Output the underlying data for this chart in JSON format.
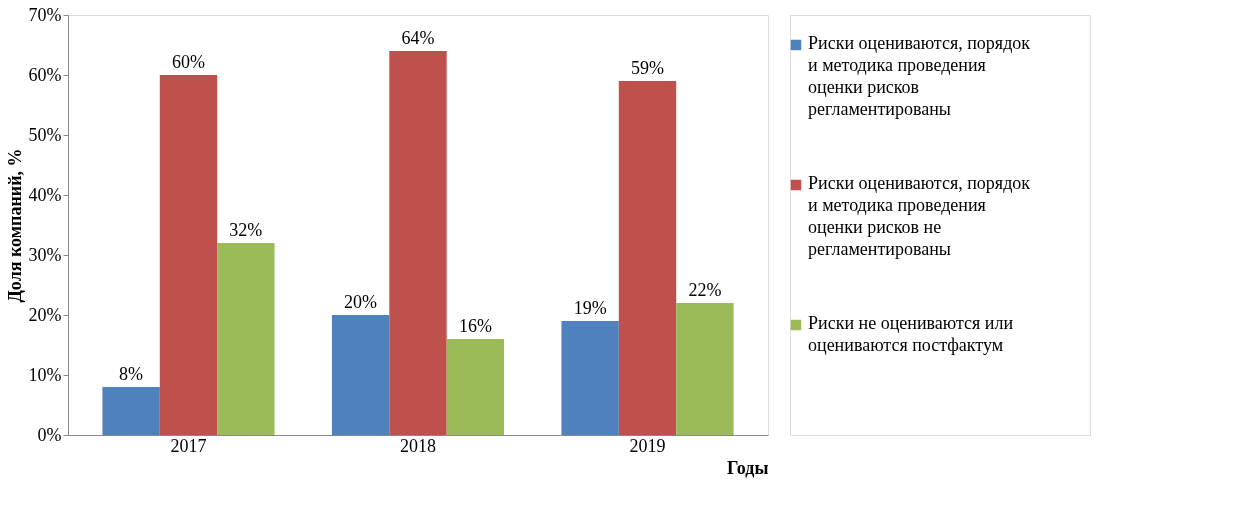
{
  "chart_data": {
    "type": "bar",
    "categories": [
      "2017",
      "2018",
      "2019"
    ],
    "xlabel": "Годы",
    "ylabel": "Доля компаний, %",
    "series": [
      {
        "name": "Риски оцениваются, порядок и методика проведения оценки рисков регламентированы",
        "color": "#4f81bd",
        "values": [
          8,
          20,
          19
        ],
        "value_labels": [
          "8%",
          "20%",
          "19%"
        ]
      },
      {
        "name": "Риски оцениваются, порядок и методика проведения оценки рисков не регламентированы",
        "color": "#c0504d",
        "values": [
          60,
          64,
          59
        ],
        "value_labels": [
          "60%",
          "64%",
          "59%"
        ]
      },
      {
        "name": "Риски не оцениваются или оцениваются постфактум",
        "color": "#9bbb59",
        "values": [
          32,
          16,
          22
        ],
        "value_labels": [
          "32%",
          "16%",
          "22%"
        ]
      }
    ],
    "ylim": [
      0,
      70
    ],
    "yticks": [
      {
        "value": 0,
        "label": "0%"
      },
      {
        "value": 10,
        "label": "10%"
      },
      {
        "value": 20,
        "label": "20%"
      },
      {
        "value": 30,
        "label": "30%"
      },
      {
        "value": 40,
        "label": "40%"
      },
      {
        "value": 50,
        "label": "50%"
      },
      {
        "value": 60,
        "label": "60%"
      },
      {
        "value": 70,
        "label": "70%"
      }
    ],
    "grid": false,
    "legend": "right"
  }
}
